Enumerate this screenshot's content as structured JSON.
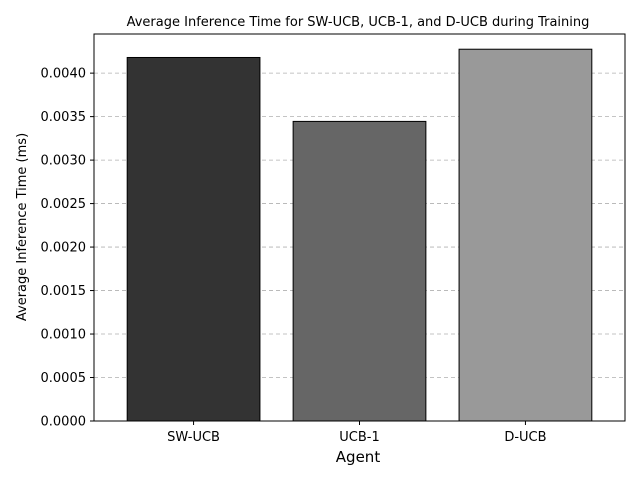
{
  "chart_data": {
    "type": "bar",
    "title": "Average Inference Time for SW-UCB, UCB-1, and D-UCB during Training",
    "xlabel": "Agent",
    "ylabel": "Average Inference Time (ms)",
    "categories": [
      "SW-UCB",
      "UCB-1",
      "D-UCB"
    ],
    "values": [
      0.00418,
      0.003445,
      0.004275
    ],
    "colors": [
      "#333333",
      "#666666",
      "#999999"
    ],
    "edge_color": "#000000",
    "ylim": [
      0,
      0.00445
    ],
    "yticks": [
      "0.0000",
      "0.0005",
      "0.0010",
      "0.0015",
      "0.0020",
      "0.0025",
      "0.0030",
      "0.0035",
      "0.0040"
    ],
    "ytick_values": [
      0,
      0.0005,
      0.001,
      0.0015,
      0.002,
      0.0025,
      0.003,
      0.0035,
      0.004
    ],
    "grid": "y-dashed"
  }
}
